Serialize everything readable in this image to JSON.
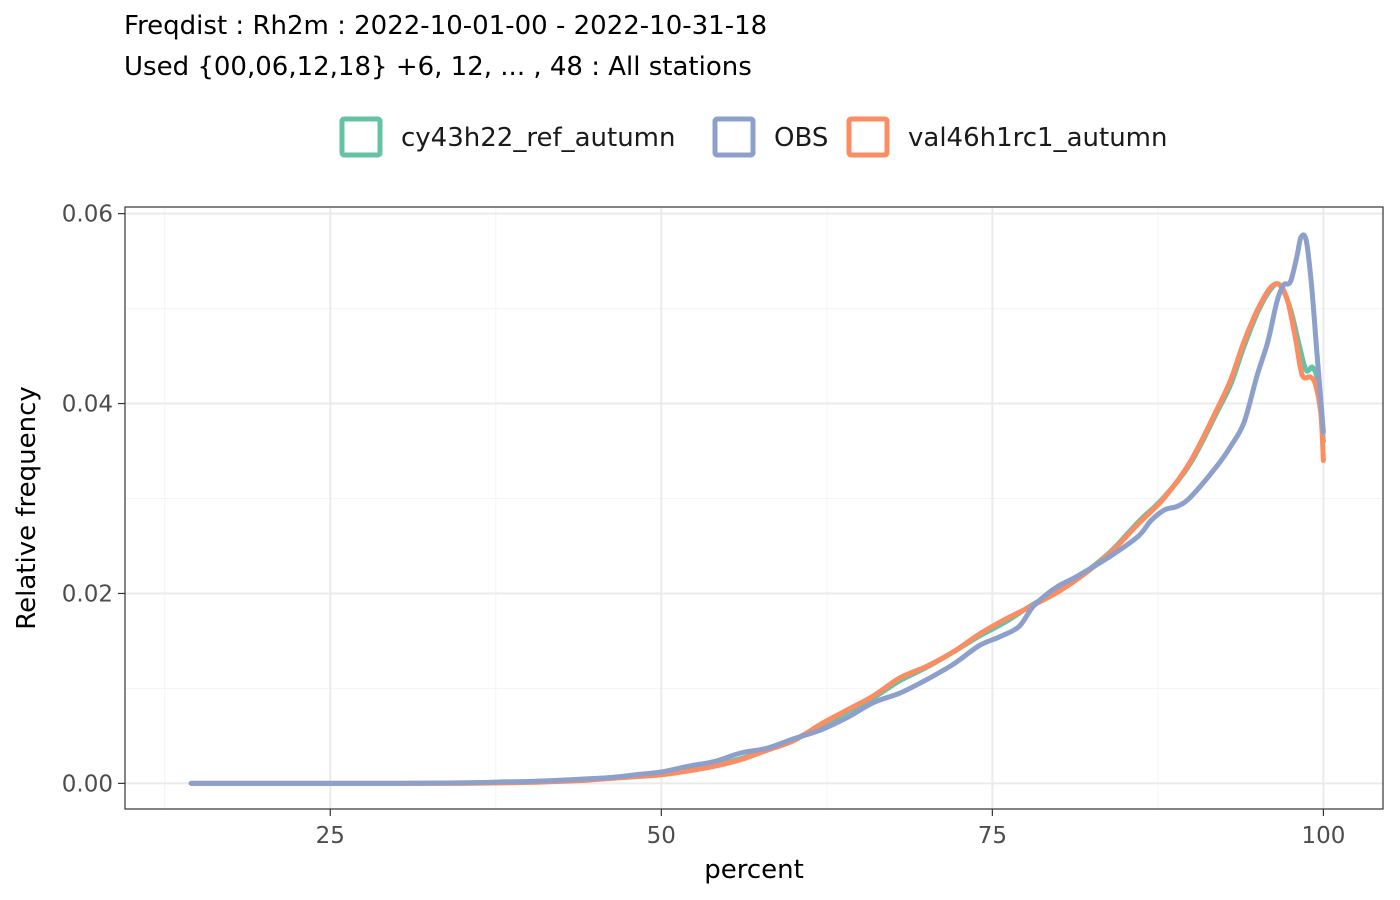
{
  "chart_data": {
    "type": "line",
    "title": "Freqdist : Rh2m : 2022-10-01-00 - 2022-10-31-18",
    "subtitle": "Used {00,06,12,18} +6, 12, ... , 48 : All stations",
    "xlabel": "percent",
    "ylabel": "Relative frequency",
    "xlim": [
      9.5,
      104.5
    ],
    "ylim": [
      -0.0027,
      0.0607
    ],
    "x_ticks": [
      25,
      50,
      75,
      100
    ],
    "x_tick_labels": [
      "25",
      "50",
      "75",
      "100"
    ],
    "y_ticks": [
      0,
      0.02,
      0.04,
      0.06
    ],
    "y_tick_labels": [
      "0.00",
      "0.02",
      "0.04",
      "0.06"
    ],
    "grid": true,
    "legend_position": "top",
    "series": [
      {
        "name": "cy43h22_ref_autumn",
        "color": "#66c2a5",
        "x": [
          14.5,
          20,
          25,
          30,
          35,
          38,
          40,
          42,
          44,
          46,
          48,
          50,
          52,
          54,
          56,
          58,
          60,
          62,
          64,
          66,
          68,
          70,
          72,
          74,
          76,
          78,
          80,
          82,
          84,
          86,
          88,
          90,
          92,
          93,
          94,
          95,
          96,
          96.7,
          97.5,
          98.2,
          98.7,
          99.2,
          99.6,
          100
        ],
        "y": [
          0,
          0,
          0,
          0,
          5e-05,
          0.0001,
          0.00015,
          0.00025,
          0.0004,
          0.0006,
          0.0008,
          0.001,
          0.0014,
          0.0019,
          0.0026,
          0.0035,
          0.0046,
          0.006,
          0.0075,
          0.009,
          0.0108,
          0.0122,
          0.0138,
          0.0155,
          0.017,
          0.0188,
          0.0203,
          0.0222,
          0.0245,
          0.0275,
          0.0302,
          0.0338,
          0.0392,
          0.042,
          0.046,
          0.0495,
          0.052,
          0.0525,
          0.05,
          0.046,
          0.0435,
          0.0438,
          0.042,
          0.036
        ]
      },
      {
        "name": "OBS",
        "color": "#8da0cb",
        "x": [
          14.5,
          20,
          25,
          30,
          35,
          38,
          40,
          42,
          44,
          46,
          48,
          50,
          52,
          54,
          56,
          58,
          60,
          62,
          64,
          66,
          68,
          70,
          72,
          74,
          75.5,
          77,
          78,
          79,
          80,
          81,
          82,
          84,
          86,
          87,
          88,
          89,
          90,
          92,
          93,
          94,
          95,
          95.8,
          96.5,
          97,
          97.5,
          98,
          98.3,
          98.7,
          99.1,
          99.5,
          100
        ],
        "y": [
          0,
          0,
          0,
          0,
          5e-05,
          0.00015,
          0.0002,
          0.0003,
          0.00045,
          0.0006,
          0.0009,
          0.0012,
          0.0018,
          0.0023,
          0.0032,
          0.0037,
          0.0047,
          0.0056,
          0.0069,
          0.0085,
          0.0095,
          0.0109,
          0.0125,
          0.0145,
          0.0154,
          0.0165,
          0.0185,
          0.0198,
          0.0208,
          0.0215,
          0.0223,
          0.024,
          0.026,
          0.0277,
          0.0288,
          0.0292,
          0.0302,
          0.0335,
          0.0355,
          0.038,
          0.043,
          0.0465,
          0.0508,
          0.0525,
          0.0528,
          0.0555,
          0.0575,
          0.0572,
          0.0525,
          0.0455,
          0.037
        ]
      },
      {
        "name": "val46h1rc1_autumn",
        "color": "#fc8d62",
        "x": [
          14.5,
          20,
          25,
          30,
          35,
          38,
          40,
          42,
          44,
          46,
          48,
          50,
          52,
          54,
          56,
          58,
          60,
          62,
          64,
          66,
          68,
          70,
          72,
          74,
          76,
          78,
          80,
          82,
          84,
          86,
          88,
          90,
          92,
          93,
          94,
          95,
          96,
          96.7,
          97.3,
          97.9,
          98.4,
          99,
          99.4,
          99.8,
          100
        ],
        "y": [
          0,
          0,
          0,
          0,
          0,
          5e-05,
          0.0001,
          0.0002,
          0.0003,
          0.0005,
          0.0007,
          0.0009,
          0.0013,
          0.0018,
          0.0025,
          0.0035,
          0.0045,
          0.0062,
          0.0077,
          0.0092,
          0.0111,
          0.0123,
          0.0138,
          0.0157,
          0.0173,
          0.0187,
          0.0202,
          0.0221,
          0.0244,
          0.0273,
          0.0301,
          0.034,
          0.0395,
          0.0425,
          0.0465,
          0.0498,
          0.0522,
          0.0525,
          0.0508,
          0.0468,
          0.043,
          0.0428,
          0.042,
          0.039,
          0.034
        ]
      }
    ]
  }
}
